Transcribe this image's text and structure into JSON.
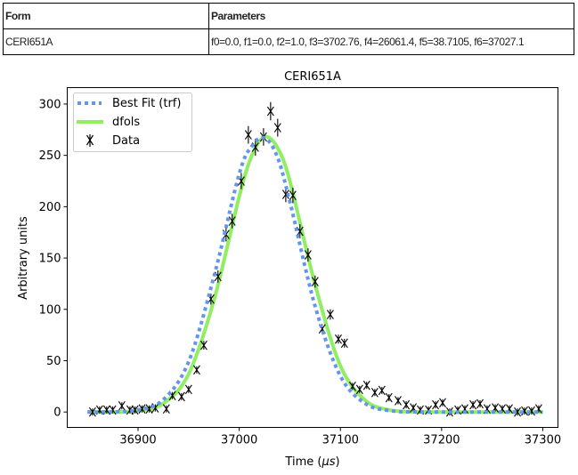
{
  "table": {
    "headers": [
      "Form",
      "Parameters"
    ],
    "rows": [
      {
        "form": "CERI651A",
        "parameters": "f0=0.0, f1=0.0, f2=1.0, f3=3702.76, f4=26061.4, f5=38.7105, f6=37027.1"
      }
    ]
  },
  "chart_data": {
    "type": "line",
    "title": "CERI651A",
    "xlabel_prefix": "Time (",
    "xlabel_unit": "μs",
    "xlabel_suffix": ")",
    "ylabel": "Arbitrary units",
    "xlim": [
      36830,
      37315
    ],
    "ylim": [
      -15,
      316
    ],
    "xticks": [
      36900,
      37000,
      37100,
      37200,
      37300
    ],
    "yticks": [
      0,
      50,
      100,
      150,
      200,
      250,
      300
    ],
    "grid": false,
    "legend_position": "upper-left",
    "series": [
      {
        "name": "Best Fit (trf)",
        "style": "dotted",
        "color": "#6495ed",
        "x": [
          36850,
          36875,
          36900,
          36925,
          36950,
          36975,
          37000,
          37012.5,
          37025,
          37037.5,
          37050,
          37075,
          37100,
          37125,
          37150,
          37175,
          37200,
          37225,
          37250,
          37275,
          37300
        ],
        "y": [
          0,
          0.2,
          2,
          12,
          49,
          132,
          232,
          259,
          267,
          249,
          205,
          103,
          35,
          8,
          1.2,
          0.1,
          0,
          0,
          0,
          0,
          0
        ]
      },
      {
        "name": "dfols",
        "style": "solid",
        "color": "#90ee60",
        "x": [
          36850,
          36875,
          36900,
          36925,
          36950,
          36975,
          37000,
          37012.5,
          37025,
          37037.5,
          37050,
          37075,
          37100,
          37125,
          37150,
          37175,
          37200,
          37225,
          37250,
          37275,
          37300
        ],
        "y": [
          0,
          0.1,
          1.2,
          8.3,
          37,
          109,
          210,
          250,
          268,
          258,
          225,
          124,
          45,
          11,
          1.7,
          0.2,
          0,
          0,
          0,
          0,
          0
        ]
      },
      {
        "name": "Data",
        "style": "errorbar-x",
        "color": "#000000",
        "x": [
          36855,
          36862,
          36869,
          36875,
          36884,
          36892,
          36897,
          36904,
          36911,
          36917,
          36928,
          36934,
          36943,
          36950,
          36958,
          36965,
          36972,
          36979,
          36987,
          36993,
          37002,
          37009,
          37016,
          37024,
          37031,
          37038,
          37046,
          37053,
          37060,
          37068,
          37075,
          37082,
          37090,
          37098,
          37104,
          37112,
          37119,
          37126,
          37134,
          37141,
          37148,
          37157,
          37165,
          37172,
          37179,
          37187,
          37194,
          37201,
          37208,
          37216,
          37223,
          37231,
          37238,
          37245,
          37253,
          37260,
          37267,
          37275,
          37282,
          37289,
          37296
        ],
        "y": [
          0,
          2,
          2,
          2,
          6,
          2,
          2,
          3,
          3,
          4,
          3,
          16,
          15,
          22,
          41,
          65,
          110,
          132,
          173,
          186,
          225,
          270,
          258,
          268,
          293,
          277,
          212,
          211,
          176,
          153,
          127,
          81,
          95,
          71,
          67,
          25,
          22,
          26,
          19,
          21,
          14,
          11,
          7,
          4,
          2,
          2,
          7,
          9,
          0,
          2,
          3,
          7,
          8,
          3,
          4,
          3,
          3,
          0,
          1,
          1,
          3
        ]
      }
    ]
  }
}
